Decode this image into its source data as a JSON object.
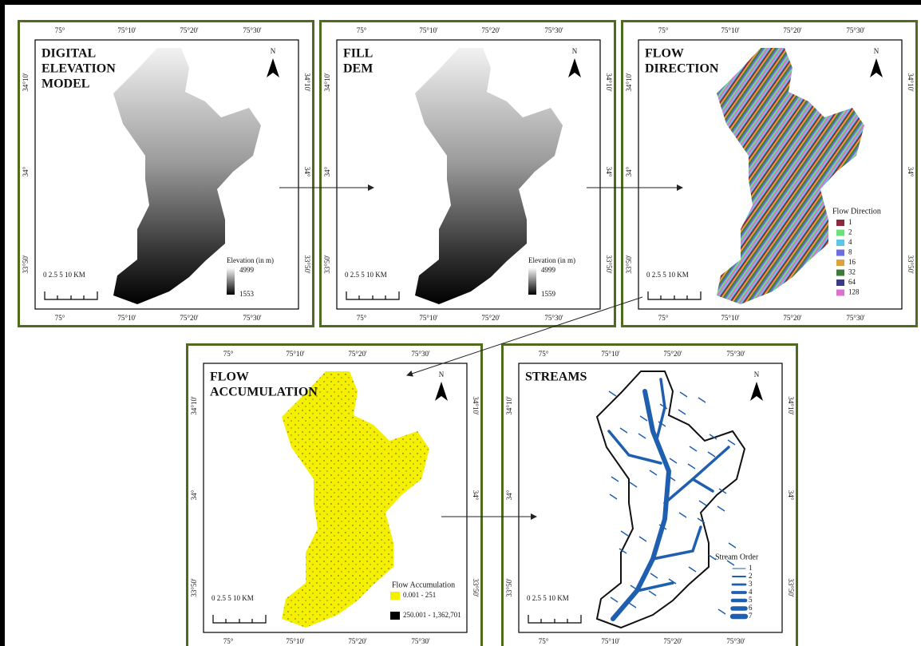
{
  "grid": {
    "lon_labels": [
      "75°",
      "75°10'",
      "75°20'",
      "75°30'"
    ],
    "lat_labels": [
      "34°10'",
      "34°",
      "33°50'"
    ],
    "north": "N",
    "scale_label": "0 2.5 5    10  KM"
  },
  "panels": [
    {
      "title": [
        "DIGITAL",
        "ELEVATION",
        "MODEL"
      ],
      "fill": "dem",
      "legend": {
        "kind": "gradient",
        "title": "Elevation (in m)",
        "max": "4999",
        "min": "1553"
      }
    },
    {
      "title": [
        "FILL",
        "DEM"
      ],
      "fill": "dem",
      "legend": {
        "kind": "gradient",
        "title": "Elevation (in m)",
        "max": "4999",
        "min": "1559"
      }
    },
    {
      "title": [
        "FLOW",
        "DIRECTION"
      ],
      "fill": "flow",
      "legend": {
        "kind": "classes",
        "title": "Flow Direction",
        "items": [
          {
            "label": "1",
            "color": "#8b2a3a"
          },
          {
            "label": "2",
            "color": "#6de07a"
          },
          {
            "label": "4",
            "color": "#5bc6e8"
          },
          {
            "label": "8",
            "color": "#6c6ee0"
          },
          {
            "label": "16",
            "color": "#e0a040"
          },
          {
            "label": "32",
            "color": "#3e7a3e"
          },
          {
            "label": "64",
            "color": "#3a3a8a"
          },
          {
            "label": "128",
            "color": "#e070d0"
          }
        ]
      }
    },
    {
      "title": [
        "FLOW",
        "ACCUMULATION"
      ],
      "fill": "accum",
      "legend": {
        "kind": "classes",
        "title": "Flow Accumulation",
        "items": [
          {
            "label": "0.001 - 251",
            "color": "#f5ef00"
          },
          {
            "label": "250.001 - 1,362,701",
            "color": "#000000"
          }
        ]
      }
    },
    {
      "title": [
        "STREAMS"
      ],
      "fill": "streams",
      "legend": {
        "kind": "lines",
        "title": "Stream Order",
        "color": "#1f5fb0",
        "items": [
          "1",
          "2",
          "3",
          "4",
          "5",
          "6",
          "7"
        ]
      }
    }
  ]
}
